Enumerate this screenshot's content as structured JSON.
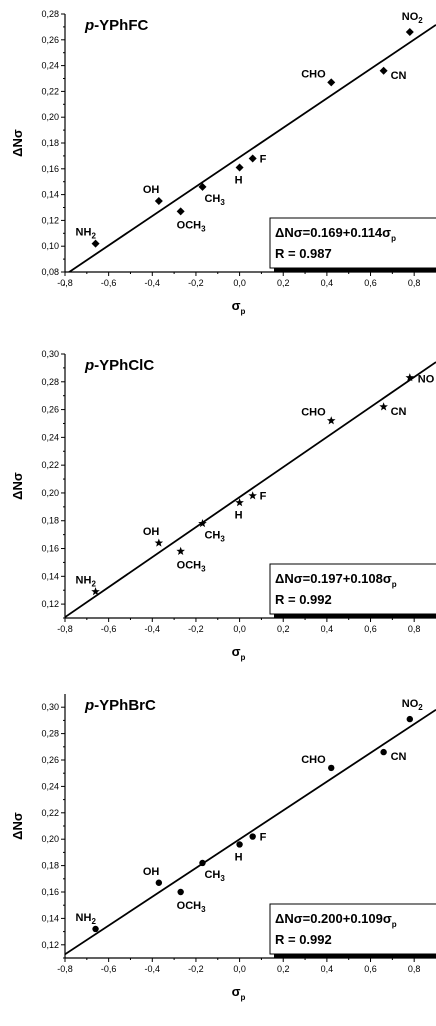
{
  "chart_data": [
    {
      "type": "scatter",
      "title": "p-YPhFC",
      "xlabel": "σp",
      "ylabel": "ΔNσ",
      "xlim": [
        -0.8,
        0.9
      ],
      "ylim": [
        0.08,
        0.28
      ],
      "xticks": [
        "-0,8",
        "-0,6",
        "-0,4",
        "-0,2",
        "0,0",
        "0,2",
        "0,4",
        "0,6",
        "0,8"
      ],
      "yticks": [
        "0,08",
        "0,10",
        "0,12",
        "0,14",
        "0,16",
        "0,18",
        "0,20",
        "0,22",
        "0,24",
        "0,26",
        "0,28"
      ],
      "marker": "diamond",
      "points": [
        {
          "label": "NH2",
          "x": -0.66,
          "y": 0.102
        },
        {
          "label": "OH",
          "x": -0.37,
          "y": 0.135
        },
        {
          "label": "OCH3",
          "x": -0.27,
          "y": 0.127
        },
        {
          "label": "CH3",
          "x": -0.17,
          "y": 0.146
        },
        {
          "label": "H",
          "x": 0.0,
          "y": 0.161
        },
        {
          "label": "F",
          "x": 0.06,
          "y": 0.168
        },
        {
          "label": "CHO",
          "x": 0.42,
          "y": 0.227
        },
        {
          "label": "CN",
          "x": 0.66,
          "y": 0.236
        },
        {
          "label": "NO2",
          "x": 0.78,
          "y": 0.266
        }
      ],
      "fit": {
        "intercept": 0.169,
        "slope": 0.114
      },
      "equation": "ΔNσ=0.169+0.114σp",
      "r_text": "R = 0.987",
      "grid": false,
      "legend": "none"
    },
    {
      "type": "scatter",
      "title": "p-YPhClC",
      "xlabel": "σp",
      "ylabel": "ΔNσ",
      "xlim": [
        -0.8,
        0.9
      ],
      "ylim": [
        0.11,
        0.3
      ],
      "xticks": [
        "-0,8",
        "-0,6",
        "-0,4",
        "-0,2",
        "0,0",
        "0,2",
        "0,4",
        "0,6",
        "0,8"
      ],
      "yticks": [
        "0,12",
        "0,14",
        "0,16",
        "0,18",
        "0,20",
        "0,22",
        "0,24",
        "0,26",
        "0,28",
        "0,30"
      ],
      "marker": "star",
      "points": [
        {
          "label": "NH2",
          "x": -0.66,
          "y": 0.129
        },
        {
          "label": "OH",
          "x": -0.37,
          "y": 0.164
        },
        {
          "label": "OCH3",
          "x": -0.27,
          "y": 0.158
        },
        {
          "label": "CH3",
          "x": -0.17,
          "y": 0.178
        },
        {
          "label": "H",
          "x": 0.0,
          "y": 0.193
        },
        {
          "label": "F",
          "x": 0.06,
          "y": 0.198
        },
        {
          "label": "CHO",
          "x": 0.42,
          "y": 0.252
        },
        {
          "label": "CN",
          "x": 0.66,
          "y": 0.262
        },
        {
          "label": "NO",
          "x": 0.78,
          "y": 0.283
        }
      ],
      "fit": {
        "intercept": 0.197,
        "slope": 0.108
      },
      "equation": "ΔNσ=0.197+0.108σp",
      "r_text": "R = 0.992",
      "grid": false,
      "legend": "none"
    },
    {
      "type": "scatter",
      "title": "p-YPhBrC",
      "xlabel": "σp",
      "ylabel": "ΔNσ",
      "xlim": [
        -0.8,
        0.9
      ],
      "ylim": [
        0.11,
        0.31
      ],
      "xticks": [
        "-0,8",
        "-0,6",
        "-0,4",
        "-0,2",
        "0,0",
        "0,2",
        "0,4",
        "0,6",
        "0,8"
      ],
      "yticks": [
        "0,12",
        "0,14",
        "0,16",
        "0,18",
        "0,20",
        "0,22",
        "0,24",
        "0,26",
        "0,28",
        "0,30"
      ],
      "marker": "circle",
      "points": [
        {
          "label": "NH2",
          "x": -0.66,
          "y": 0.132
        },
        {
          "label": "OH",
          "x": -0.37,
          "y": 0.167
        },
        {
          "label": "OCH3",
          "x": -0.27,
          "y": 0.16
        },
        {
          "label": "CH3",
          "x": -0.17,
          "y": 0.182
        },
        {
          "label": "H",
          "x": 0.0,
          "y": 0.196
        },
        {
          "label": "F",
          "x": 0.06,
          "y": 0.202
        },
        {
          "label": "CHO",
          "x": 0.42,
          "y": 0.254
        },
        {
          "label": "CN",
          "x": 0.66,
          "y": 0.266
        },
        {
          "label": "NO2",
          "x": 0.78,
          "y": 0.291
        }
      ],
      "fit": {
        "intercept": 0.2,
        "slope": 0.109
      },
      "equation": "ΔNσ=0.200+0.109σp",
      "r_text": "R = 0.992",
      "grid": false,
      "legend": "none"
    }
  ]
}
